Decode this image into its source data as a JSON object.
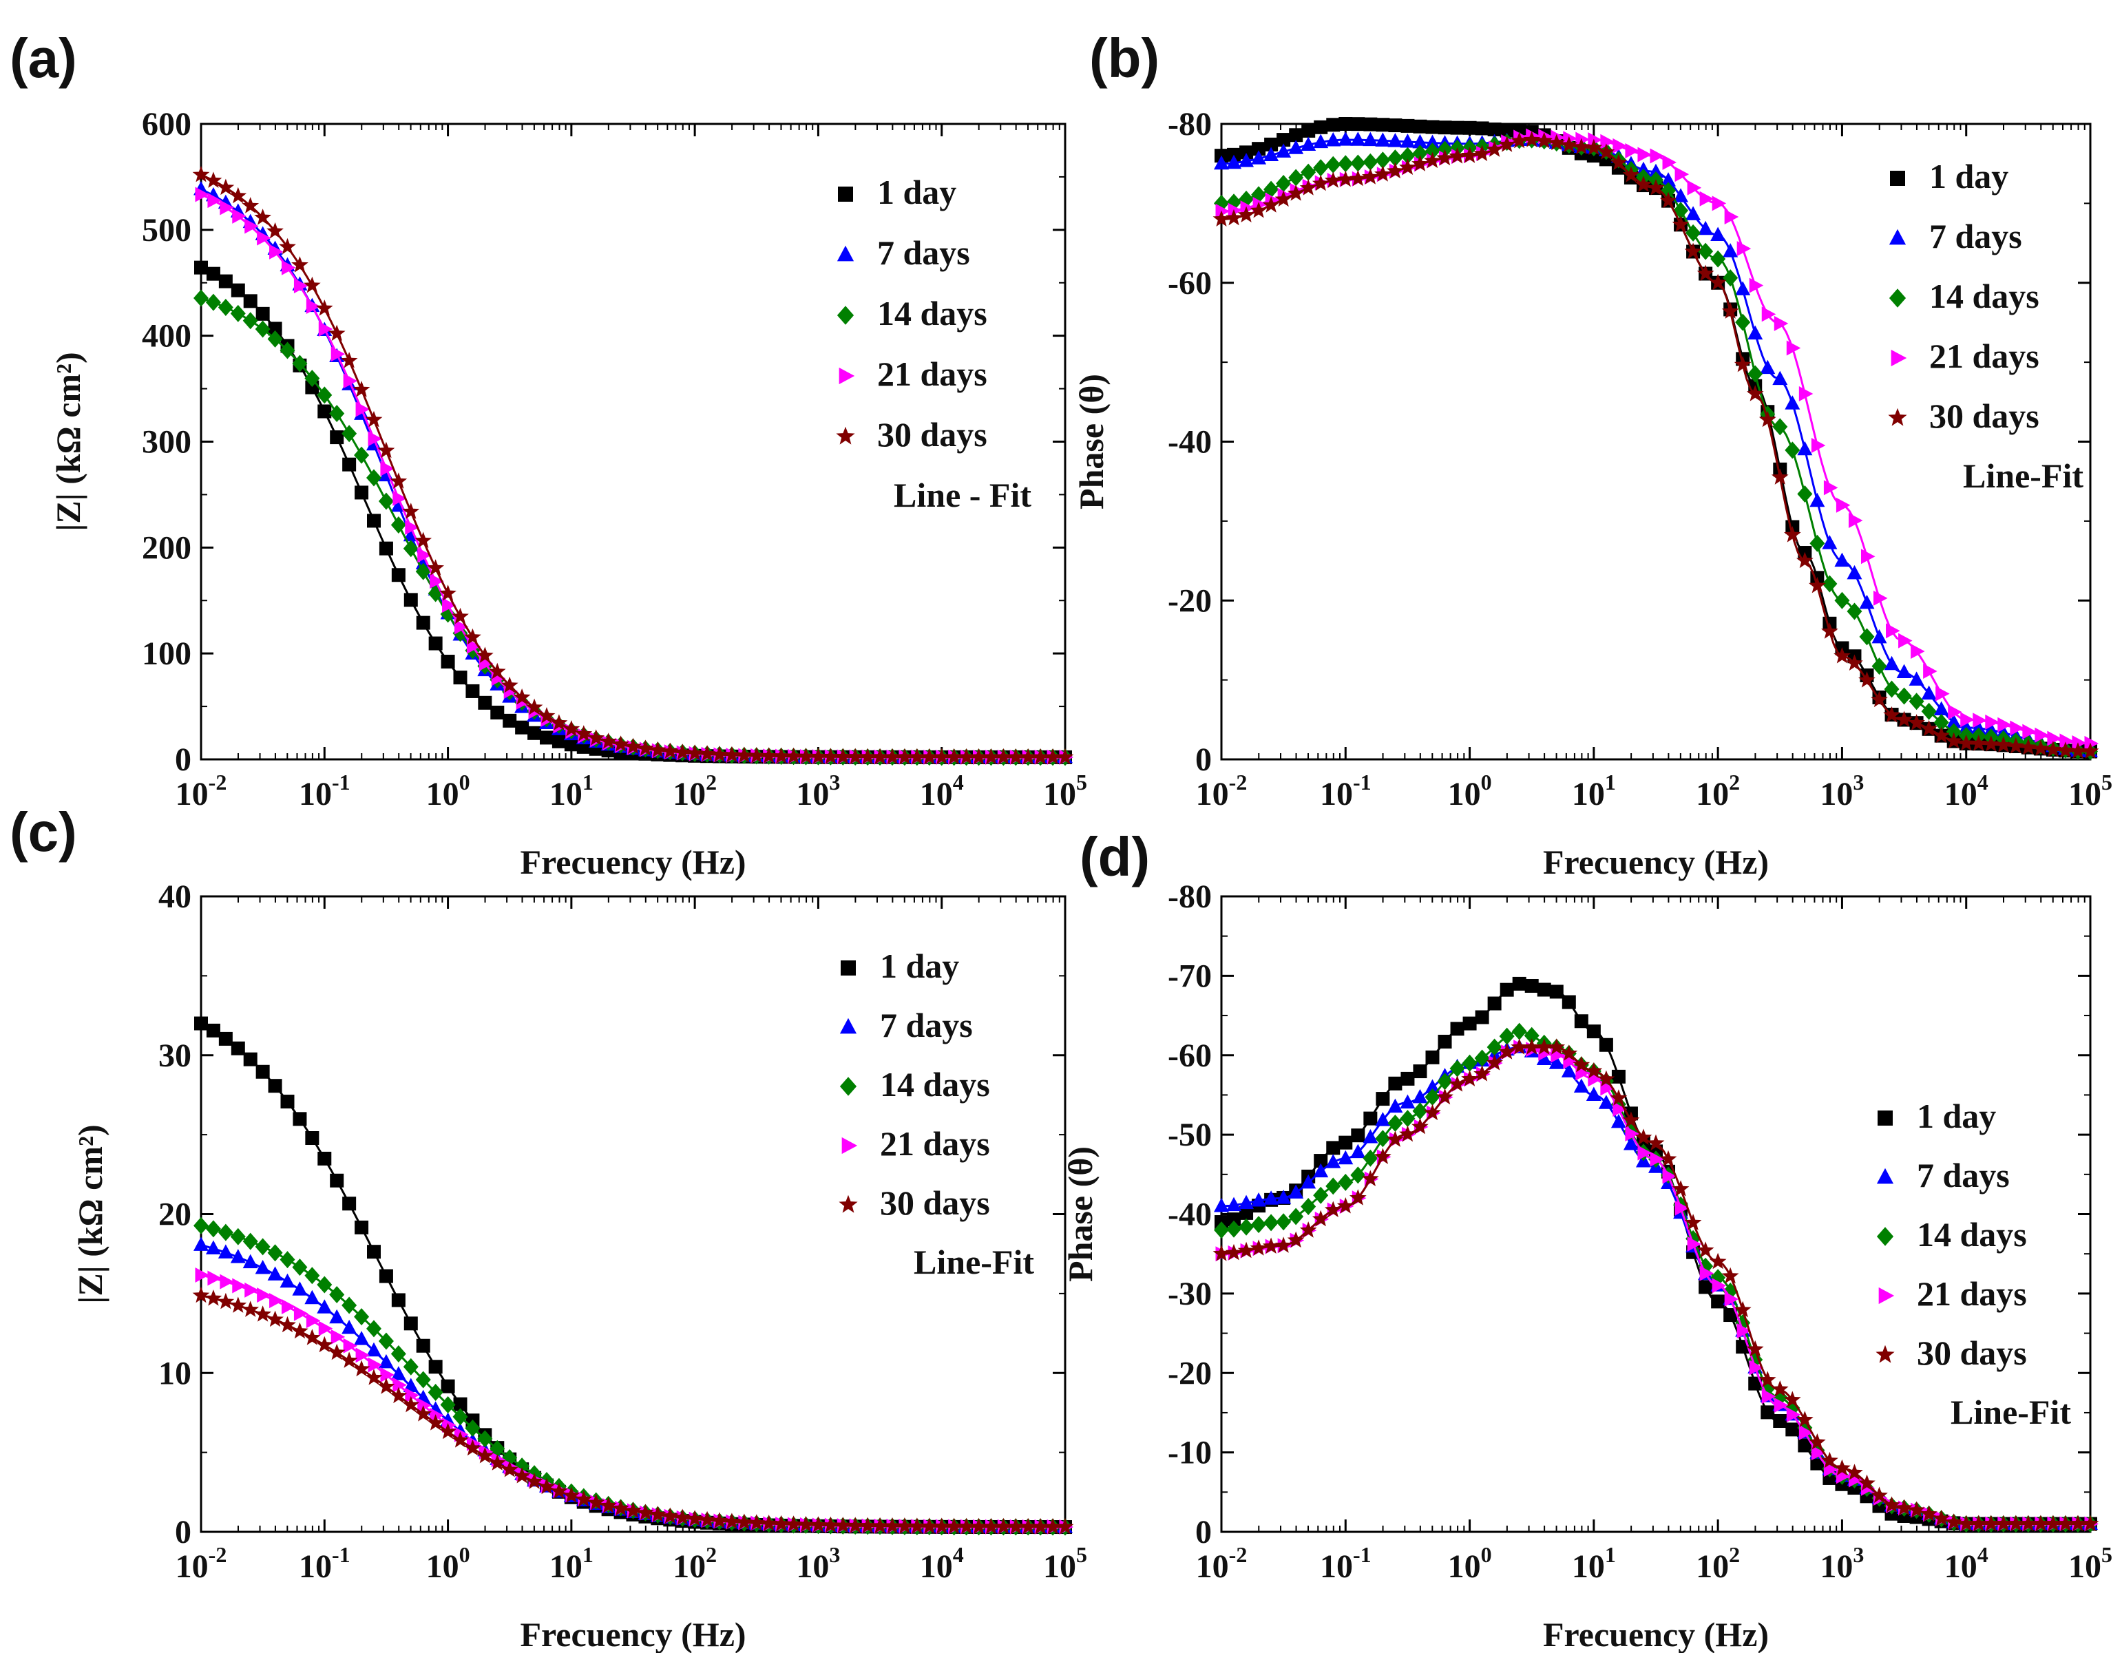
{
  "figure": {
    "colors": {
      "s1": "#000000",
      "s7": "#0000ff",
      "s14": "#008000",
      "s21": "#ff00ff",
      "s30": "#800000"
    },
    "markers": {
      "s1": "square",
      "s7": "triangle-up",
      "s14": "diamond",
      "s21": "triangle-right",
      "s30": "star"
    }
  },
  "chart_data": [
    {
      "panel": "(a)",
      "type": "scatter",
      "xscale": "log",
      "xlim": [
        0.01,
        100000
      ],
      "ylim": [
        0,
        600
      ],
      "yticks": [
        0,
        100,
        200,
        300,
        400,
        500,
        600
      ],
      "xticks": [
        {
          "base": "10",
          "exp": "-2"
        },
        {
          "base": "10",
          "exp": "-1"
        },
        {
          "base": "10",
          "exp": "0"
        },
        {
          "base": "10",
          "exp": "1"
        },
        {
          "base": "10",
          "exp": "2"
        },
        {
          "base": "10",
          "exp": "3"
        },
        {
          "base": "10",
          "exp": "4"
        },
        {
          "base": "10",
          "exp": "5"
        }
      ],
      "xlabel": "Frecuency (Hz)",
      "ylabel": "|Z| (kΩ cm²)",
      "legend_position": "top-right",
      "fit_label": "Line - Fit",
      "series": [
        {
          "name": "1 day",
          "key": "s1",
          "low": 490,
          "tau": 0.21,
          "p": 0.95,
          "floor": 2
        },
        {
          "name": "7 days",
          "key": "s7",
          "low": 565,
          "tau": 0.28,
          "p": 0.9,
          "floor": 2
        },
        {
          "name": "14 days",
          "key": "s14",
          "low": 455,
          "tau": 0.37,
          "p": 0.86,
          "floor": 2
        },
        {
          "name": "21 days",
          "key": "s21",
          "low": 560,
          "tau": 0.3,
          "p": 0.88,
          "floor": 2
        },
        {
          "name": "30 days",
          "key": "s30",
          "low": 578,
          "tau": 0.32,
          "p": 0.88,
          "floor": 2
        }
      ]
    },
    {
      "panel": "(b)",
      "type": "scatter",
      "xscale": "log",
      "xlim": [
        0.01,
        100000
      ],
      "ylim": [
        0,
        -80
      ],
      "yticks": [
        0,
        -20,
        -40,
        -60,
        -80
      ],
      "xticks": [
        {
          "base": "10",
          "exp": "-2"
        },
        {
          "base": "10",
          "exp": "-1"
        },
        {
          "base": "10",
          "exp": "0"
        },
        {
          "base": "10",
          "exp": "1"
        },
        {
          "base": "10",
          "exp": "2"
        },
        {
          "base": "10",
          "exp": "3"
        },
        {
          "base": "10",
          "exp": "4"
        },
        {
          "base": "10",
          "exp": "5"
        }
      ],
      "xlabel": "Frecuency (Hz)",
      "ylabel": "Phase (θ)",
      "legend_position": "top-right",
      "fit_label": "Line-Fit",
      "series": [
        {
          "name": "1 day",
          "key": "s1",
          "points": [
            [
              0.01,
              -76
            ],
            [
              0.1,
              -80
            ],
            [
              1,
              -79.5
            ],
            [
              3,
              -79
            ],
            [
              10,
              -76
            ],
            [
              30,
              -72
            ],
            [
              100,
              -60
            ],
            [
              200,
              -47
            ],
            [
              500,
              -26
            ],
            [
              1000,
              -14
            ],
            [
              3000,
              -5
            ],
            [
              10000,
              -2
            ],
            [
              100000,
              -1
            ]
          ]
        },
        {
          "name": "7 days",
          "key": "s7",
          "points": [
            [
              0.01,
              -75
            ],
            [
              0.1,
              -78
            ],
            [
              1,
              -77.5
            ],
            [
              3,
              -78
            ],
            [
              10,
              -77
            ],
            [
              30,
              -74
            ],
            [
              100,
              -66
            ],
            [
              300,
              -48
            ],
            [
              1000,
              -25
            ],
            [
              3000,
              -11
            ],
            [
              10000,
              -4
            ],
            [
              100000,
              -1
            ]
          ]
        },
        {
          "name": "14 days",
          "key": "s14",
          "points": [
            [
              0.01,
              -70
            ],
            [
              0.1,
              -75
            ],
            [
              1,
              -77
            ],
            [
              3,
              -78
            ],
            [
              10,
              -77
            ],
            [
              30,
              -73
            ],
            [
              100,
              -63
            ],
            [
              300,
              -42
            ],
            [
              1000,
              -20
            ],
            [
              3000,
              -8
            ],
            [
              10000,
              -3
            ],
            [
              100000,
              -1
            ]
          ]
        },
        {
          "name": "21 days",
          "key": "s21",
          "points": [
            [
              0.01,
              -69
            ],
            [
              0.1,
              -73
            ],
            [
              1,
              -76
            ],
            [
              3,
              -78.5
            ],
            [
              10,
              -78
            ],
            [
              30,
              -76
            ],
            [
              100,
              -70
            ],
            [
              300,
              -55
            ],
            [
              1000,
              -32
            ],
            [
              3000,
              -15
            ],
            [
              10000,
              -5
            ],
            [
              100000,
              -2
            ]
          ]
        },
        {
          "name": "30 days",
          "key": "s30",
          "points": [
            [
              0.01,
              -68
            ],
            [
              0.1,
              -73
            ],
            [
              1,
              -76
            ],
            [
              3,
              -78
            ],
            [
              10,
              -77
            ],
            [
              30,
              -72
            ],
            [
              100,
              -60
            ],
            [
              200,
              -46
            ],
            [
              500,
              -25
            ],
            [
              1000,
              -13
            ],
            [
              3000,
              -5
            ],
            [
              10000,
              -2
            ],
            [
              100000,
              -1
            ]
          ]
        }
      ]
    },
    {
      "panel": "(c)",
      "type": "scatter",
      "xscale": "log",
      "xlim": [
        0.01,
        100000
      ],
      "ylim": [
        0,
        40
      ],
      "yticks": [
        0,
        10,
        20,
        30,
        40
      ],
      "xticks": [
        {
          "base": "10",
          "exp": "-2"
        },
        {
          "base": "10",
          "exp": "-1"
        },
        {
          "base": "10",
          "exp": "0"
        },
        {
          "base": "10",
          "exp": "1"
        },
        {
          "base": "10",
          "exp": "2"
        },
        {
          "base": "10",
          "exp": "3"
        },
        {
          "base": "10",
          "exp": "4"
        },
        {
          "base": "10",
          "exp": "5"
        }
      ],
      "xlabel": "Frecuency (Hz)",
      "ylabel": "|Z| (kΩ cm²)",
      "legend_position": "top-right",
      "fit_label": "Line-Fit",
      "series": [
        {
          "name": "1 day",
          "key": "s1",
          "low": 34.5,
          "tau": 0.26,
          "p": 0.78,
          "floor": 0.3
        },
        {
          "name": "7 days",
          "key": "s7",
          "low": 19.5,
          "tau": 0.4,
          "p": 0.68,
          "floor": 0.3
        },
        {
          "name": "14 days",
          "key": "s14",
          "low": 20.5,
          "tau": 0.5,
          "p": 0.7,
          "floor": 0.3
        },
        {
          "name": "21 days",
          "key": "s21",
          "low": 17.5,
          "tau": 0.45,
          "p": 0.65,
          "floor": 0.3
        },
        {
          "name": "30 days",
          "key": "s30",
          "low": 16.2,
          "tau": 0.45,
          "p": 0.63,
          "floor": 0.3
        }
      ]
    },
    {
      "panel": "(d)",
      "type": "scatter",
      "xscale": "log",
      "xlim": [
        0.01,
        100000
      ],
      "ylim": [
        0,
        -80
      ],
      "yticks": [
        0,
        -10,
        -20,
        -30,
        -40,
        -50,
        -60,
        -70,
        -80
      ],
      "xticks": [
        {
          "base": "10",
          "exp": "-2"
        },
        {
          "base": "10",
          "exp": "-1"
        },
        {
          "base": "10",
          "exp": "0"
        },
        {
          "base": "10",
          "exp": "1"
        },
        {
          "base": "10",
          "exp": "2"
        },
        {
          "base": "10",
          "exp": "3"
        },
        {
          "base": "10",
          "exp": "4"
        },
        {
          "base": "10",
          "exp": "5"
        }
      ],
      "xlabel": "Frecuency (Hz)",
      "ylabel": "Phase (θ)",
      "legend_position": "right",
      "fit_label": "Line-Fit",
      "series": [
        {
          "name": "1 day",
          "key": "s1",
          "points": [
            [
              0.01,
              -39
            ],
            [
              0.03,
              -42
            ],
            [
              0.1,
              -49
            ],
            [
              0.3,
              -57
            ],
            [
              1,
              -64
            ],
            [
              2.5,
              -69
            ],
            [
              5,
              -68
            ],
            [
              10,
              -63
            ],
            [
              30,
              -48
            ],
            [
              100,
              -29
            ],
            [
              300,
              -14
            ],
            [
              1000,
              -6
            ],
            [
              3000,
              -2
            ],
            [
              10000,
              -1
            ],
            [
              100000,
              -1
            ]
          ]
        },
        {
          "name": "7 days",
          "key": "s7",
          "points": [
            [
              0.01,
              -41
            ],
            [
              0.03,
              -42
            ],
            [
              0.1,
              -47
            ],
            [
              0.3,
              -54
            ],
            [
              1,
              -59
            ],
            [
              2.5,
              -61
            ],
            [
              5,
              -59
            ],
            [
              10,
              -55
            ],
            [
              30,
              -46
            ],
            [
              100,
              -31
            ],
            [
              300,
              -16
            ],
            [
              1000,
              -7
            ],
            [
              3000,
              -3
            ],
            [
              10000,
              -1
            ],
            [
              100000,
              -1
            ]
          ]
        },
        {
          "name": "14 days",
          "key": "s14",
          "points": [
            [
              0.01,
              -38
            ],
            [
              0.03,
              -39
            ],
            [
              0.1,
              -44
            ],
            [
              0.3,
              -52
            ],
            [
              1,
              -59
            ],
            [
              2.5,
              -63
            ],
            [
              5,
              -61
            ],
            [
              10,
              -58
            ],
            [
              30,
              -47
            ],
            [
              100,
              -32
            ],
            [
              300,
              -17
            ],
            [
              1000,
              -7
            ],
            [
              3000,
              -3
            ],
            [
              10000,
              -1
            ],
            [
              100000,
              -1
            ]
          ]
        },
        {
          "name": "21 days",
          "key": "s21",
          "points": [
            [
              0.01,
              -35
            ],
            [
              0.03,
              -36
            ],
            [
              0.1,
              -41
            ],
            [
              0.3,
              -50
            ],
            [
              1,
              -57
            ],
            [
              2.5,
              -61
            ],
            [
              5,
              -60
            ],
            [
              10,
              -57
            ],
            [
              30,
              -47
            ],
            [
              100,
              -31
            ],
            [
              300,
              -16
            ],
            [
              1000,
              -7
            ],
            [
              3000,
              -3
            ],
            [
              10000,
              -1
            ],
            [
              100000,
              -1
            ]
          ]
        },
        {
          "name": "30 days",
          "key": "s30",
          "points": [
            [
              0.01,
              -35
            ],
            [
              0.03,
              -36
            ],
            [
              0.1,
              -41
            ],
            [
              0.3,
              -50
            ],
            [
              1,
              -57
            ],
            [
              2.5,
              -61
            ],
            [
              5,
              -61
            ],
            [
              10,
              -58
            ],
            [
              30,
              -49
            ],
            [
              100,
              -34
            ],
            [
              300,
              -18
            ],
            [
              1000,
              -8
            ],
            [
              3000,
              -3
            ],
            [
              10000,
              -1
            ],
            [
              100000,
              -1
            ]
          ]
        }
      ]
    }
  ]
}
